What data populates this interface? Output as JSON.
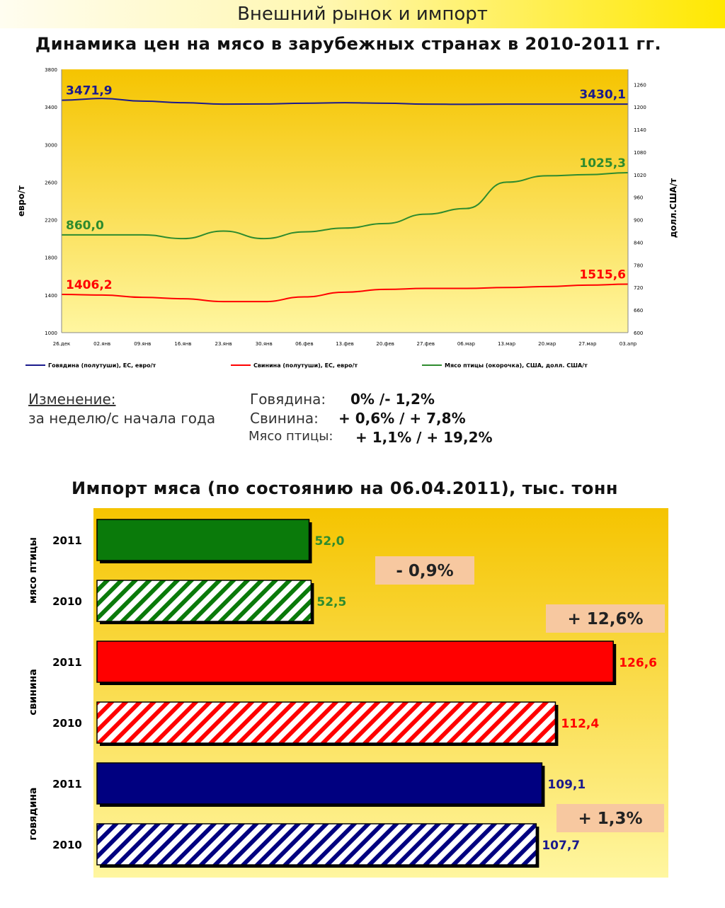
{
  "header": {
    "title": "Внешний рынок и импорт"
  },
  "price_chart": {
    "title": "Динамика цен на мясо в зарубежных странах в 2010-2011 гг."
  },
  "changes": {
    "heading": "Изменение:",
    "subheading": "за неделю/с начала года",
    "rows": [
      {
        "name": "Говядина:",
        "value": "0% /- 1,2%"
      },
      {
        "name": "Свинина:",
        "value": "+ 0,6% / + 7,8%"
      },
      {
        "name": "Мясо птицы:",
        "value": "+ 1,1% / + 19,2%"
      }
    ]
  },
  "import_chart": {
    "title": "Импорт мяса (по состоянию на 06.04.2011), тыс. тонн"
  },
  "colors": {
    "beef": "#1a1a8c",
    "pork": "#ff0000",
    "poultry": "#2e8b2e",
    "bar_poultry": "#0a7a0a",
    "badge": "#f7c8a0",
    "plot_top": "#f5c400",
    "plot_bottom": "#fff6a0"
  },
  "chart_data": [
    {
      "type": "line",
      "title": "Динамика цен на мясо в зарубежных странах в 2010-2011 гг.",
      "xlabel": "",
      "ylabel": "евро/т",
      "y2label": "долл.США/т",
      "categories": [
        "26.дек",
        "02.янв",
        "09.янв",
        "16.янв",
        "23.янв",
        "30.янв",
        "06.фев",
        "13.фев",
        "20.фев",
        "27.фев",
        "06.мар",
        "13.мар",
        "20.мар",
        "27.мар",
        "03.апр"
      ],
      "ylim": [
        1000,
        3800
      ],
      "yticks": [
        "1000",
        "1400",
        "1800",
        "2200",
        "2600",
        "3000",
        "3400",
        "3800"
      ],
      "y2lim": [
        600,
        1300
      ],
      "y2ticks": [
        "600",
        "660",
        "720",
        "780",
        "840",
        "900",
        "960",
        "1020",
        "1080",
        "1140",
        "1200",
        "1260"
      ],
      "series": [
        {
          "name": "Говядина (полутуши), ЕС, евро/т",
          "axis": "left",
          "color": "#1a1a8c",
          "values": [
            3471.9,
            3490,
            3462,
            3445,
            3430,
            3432,
            3440,
            3445,
            3440,
            3430,
            3428,
            3430,
            3430,
            3430,
            3430.1
          ],
          "start_label": "3471,9",
          "end_label": "3430,1"
        },
        {
          "name": "Свинина (полутуши), ЕС, евро/т",
          "axis": "left",
          "color": "#ff0000",
          "values": [
            1406.2,
            1400,
            1375,
            1360,
            1330,
            1330,
            1380,
            1430,
            1460,
            1470,
            1470,
            1480,
            1490,
            1505,
            1515.6
          ],
          "start_label": "1406,2",
          "end_label": "1515,6"
        },
        {
          "name": "Мясо птицы (окорочка), США, долл. США/т",
          "axis": "right",
          "color": "#2e8b2e",
          "values": [
            860.0,
            860,
            860,
            850,
            870,
            850,
            868,
            878,
            890,
            915,
            930,
            1000,
            1017,
            1020,
            1025.3
          ],
          "start_label": "860,0",
          "end_label": "1025,3"
        }
      ],
      "legend": "bottom"
    },
    {
      "type": "bar",
      "title": "Импорт мяса (по состоянию на 06.04.2011), тыс. тонн",
      "orientation": "horizontal",
      "xlim": [
        0,
        135
      ],
      "groups": [
        {
          "name": "мясо птицы",
          "bars": [
            {
              "year": "2011",
              "value": 52.0,
              "label": "52,0",
              "style": "solid",
              "color": "#0a7a0a",
              "text_color": "#2e8b2e"
            },
            {
              "year": "2010",
              "value": 52.5,
              "label": "52,5",
              "style": "hatched",
              "color": "#0a7a0a",
              "text_color": "#2e8b2e"
            }
          ],
          "change": "- 0,9%"
        },
        {
          "name": "свинина",
          "bars": [
            {
              "year": "2011",
              "value": 126.6,
              "label": "126,6",
              "style": "solid",
              "color": "#ff0000",
              "text_color": "#ff0000"
            },
            {
              "year": "2010",
              "value": 112.4,
              "label": "112,4",
              "style": "hatched",
              "color": "#ff0000",
              "text_color": "#ff0000"
            }
          ],
          "change": "+ 12,6%"
        },
        {
          "name": "говядина",
          "bars": [
            {
              "year": "2011",
              "value": 109.1,
              "label": "109,1",
              "style": "solid",
              "color": "#000080",
              "text_color": "#1a1a8c"
            },
            {
              "year": "2010",
              "value": 107.7,
              "label": "107,7",
              "style": "hatched",
              "color": "#000080",
              "text_color": "#1a1a8c"
            }
          ],
          "change": "+ 1,3%"
        }
      ]
    }
  ]
}
